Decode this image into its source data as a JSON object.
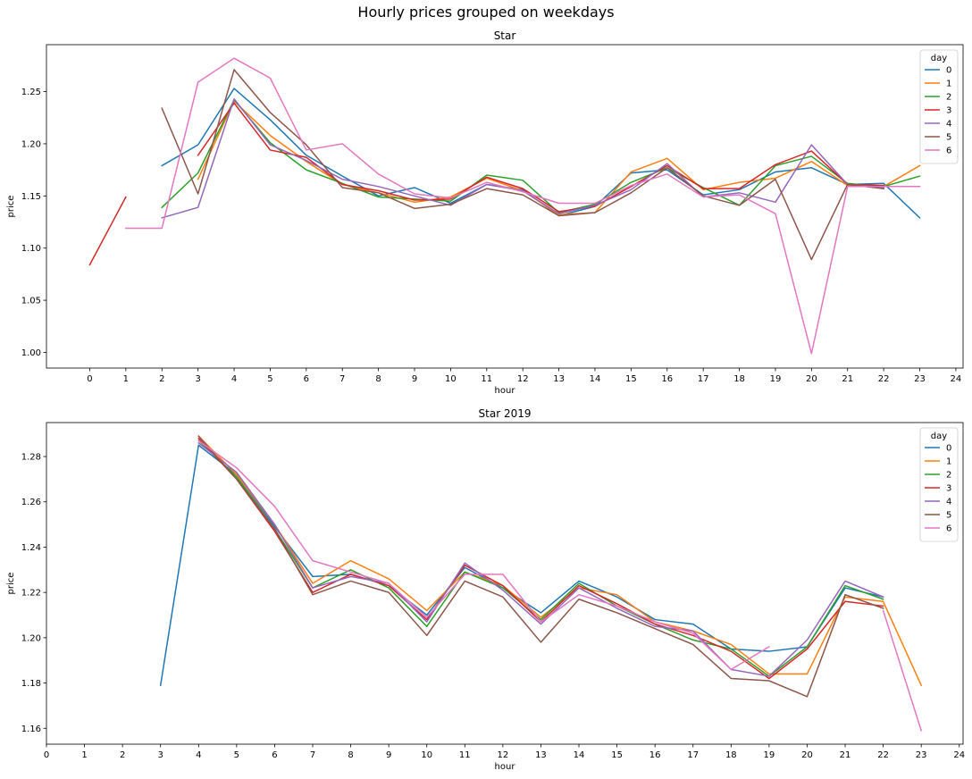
{
  "figure": {
    "suptitle": "Hourly prices grouped on weekdays"
  },
  "colors": [
    "#1f77b4",
    "#ff7f0e",
    "#2ca02c",
    "#d62728",
    "#9467bd",
    "#8c564b",
    "#e377c2"
  ],
  "chart_data": [
    {
      "type": "line",
      "title": "Star",
      "xlabel": "hour",
      "ylabel": "price",
      "xlim": [
        -1.2,
        24.2
      ],
      "ylim": [
        0.985,
        1.295
      ],
      "xticks": [
        0,
        1,
        2,
        3,
        4,
        5,
        6,
        7,
        8,
        9,
        10,
        11,
        12,
        13,
        14,
        15,
        16,
        17,
        18,
        19,
        20,
        21,
        22,
        23,
        24
      ],
      "yticks": [
        1.0,
        1.05,
        1.1,
        1.15,
        1.2,
        1.25
      ],
      "ytick_labels": [
        "1.00",
        "1.05",
        "1.10",
        "1.15",
        "1.20",
        "1.25"
      ],
      "legend": {
        "title": "day",
        "position": "top-right"
      },
      "x": [
        0,
        1,
        2,
        3,
        4,
        5,
        6,
        7,
        8,
        9,
        10,
        11,
        12,
        13,
        14,
        15,
        16,
        17,
        18,
        19,
        20,
        21,
        22,
        23
      ],
      "series": [
        {
          "name": "0",
          "values": [
            null,
            null,
            1.179,
            1.199,
            1.253,
            1.223,
            1.189,
            1.169,
            1.15,
            1.158,
            1.143,
            1.161,
            1.156,
            1.131,
            1.14,
            1.172,
            1.175,
            1.151,
            1.156,
            1.173,
            1.177,
            1.161,
            1.162,
            1.129
          ]
        },
        {
          "name": "1",
          "values": [
            null,
            null,
            null,
            1.166,
            1.241,
            1.208,
            1.183,
            1.161,
            1.153,
            1.144,
            1.149,
            1.167,
            1.155,
            1.132,
            1.134,
            1.173,
            1.186,
            1.156,
            1.163,
            1.167,
            1.183,
            1.16,
            1.159,
            1.179
          ]
        },
        {
          "name": "2",
          "values": [
            null,
            null,
            1.139,
            1.172,
            1.242,
            1.201,
            1.175,
            1.162,
            1.149,
            1.147,
            1.145,
            1.17,
            1.165,
            1.134,
            1.142,
            1.163,
            1.177,
            1.158,
            1.141,
            1.179,
            1.188,
            1.162,
            1.159,
            1.169
          ]
        },
        {
          "name": "3",
          "values": [
            1.084,
            1.149,
            null,
            1.189,
            1.239,
            1.194,
            1.187,
            1.161,
            1.155,
            1.146,
            1.147,
            1.168,
            1.157,
            1.135,
            1.14,
            1.159,
            1.179,
            1.157,
            1.157,
            1.18,
            1.193,
            1.161,
            1.16,
            null
          ]
        },
        {
          "name": "4",
          "values": [
            null,
            null,
            1.129,
            1.139,
            1.243,
            1.199,
            1.184,
            1.166,
            1.159,
            1.15,
            1.141,
            1.161,
            1.155,
            1.133,
            1.141,
            1.156,
            1.181,
            1.149,
            1.153,
            1.144,
            1.199,
            1.161,
            1.158,
            null
          ]
        },
        {
          "name": "5",
          "values": [
            null,
            null,
            1.234,
            1.152,
            1.271,
            1.23,
            1.199,
            1.158,
            1.153,
            1.138,
            1.142,
            1.157,
            1.151,
            1.131,
            1.134,
            1.153,
            1.177,
            1.15,
            1.141,
            1.166,
            1.089,
            1.161,
            1.157,
            null
          ]
        },
        {
          "name": "6",
          "values": [
            null,
            1.119,
            1.119,
            1.259,
            1.282,
            1.263,
            1.194,
            1.2,
            1.171,
            1.152,
            1.148,
            1.163,
            1.154,
            1.143,
            1.143,
            1.16,
            1.171,
            1.149,
            1.151,
            1.133,
            0.999,
            1.159,
            1.159,
            1.159
          ]
        }
      ]
    },
    {
      "type": "line",
      "title": "Star 2019",
      "xlabel": "hour",
      "ylabel": "price",
      "xlim": [
        0,
        24.1
      ],
      "ylim": [
        1.153,
        1.295
      ],
      "xticks": [
        0,
        1,
        2,
        3,
        4,
        5,
        6,
        7,
        8,
        9,
        10,
        11,
        12,
        13,
        14,
        15,
        16,
        17,
        18,
        19,
        20,
        21,
        22,
        23,
        24
      ],
      "yticks": [
        1.16,
        1.18,
        1.2,
        1.22,
        1.24,
        1.26,
        1.28
      ],
      "ytick_labels": [
        "1.16",
        "1.18",
        "1.20",
        "1.22",
        "1.24",
        "1.26",
        "1.28"
      ],
      "legend": {
        "title": "day",
        "position": "top-right"
      },
      "x": [
        0,
        1,
        2,
        3,
        4,
        5,
        6,
        7,
        8,
        9,
        10,
        11,
        12,
        13,
        14,
        15,
        16,
        17,
        18,
        19,
        20,
        21,
        22,
        23
      ],
      "series": [
        {
          "name": "0",
          "values": [
            null,
            null,
            null,
            1.179,
            1.285,
            1.272,
            1.249,
            1.227,
            1.228,
            1.223,
            1.21,
            1.231,
            1.222,
            1.211,
            1.225,
            1.218,
            1.208,
            1.206,
            1.195,
            1.194,
            1.196,
            1.222,
            1.218,
            null
          ]
        },
        {
          "name": "1",
          "values": [
            null,
            null,
            null,
            null,
            1.289,
            1.272,
            1.25,
            1.224,
            1.234,
            1.226,
            1.212,
            1.229,
            1.223,
            1.209,
            1.222,
            1.219,
            1.207,
            1.203,
            1.197,
            1.184,
            1.184,
            1.218,
            1.216,
            1.179
          ]
        },
        {
          "name": "2",
          "values": [
            null,
            null,
            null,
            null,
            1.287,
            1.271,
            1.248,
            1.222,
            1.23,
            1.222,
            1.205,
            1.229,
            1.222,
            1.208,
            1.224,
            1.214,
            1.206,
            1.199,
            1.195,
            1.183,
            1.196,
            1.223,
            1.217,
            null
          ]
        },
        {
          "name": "3",
          "values": [
            null,
            null,
            null,
            null,
            1.288,
            1.27,
            1.247,
            1.22,
            1.228,
            1.223,
            1.208,
            1.232,
            1.223,
            1.207,
            1.223,
            1.215,
            1.206,
            1.201,
            1.194,
            1.182,
            1.195,
            1.216,
            1.214,
            null
          ]
        },
        {
          "name": "4",
          "values": [
            null,
            null,
            null,
            null,
            1.286,
            1.273,
            1.25,
            1.222,
            1.227,
            1.224,
            1.207,
            1.233,
            1.221,
            1.206,
            1.222,
            1.213,
            1.205,
            1.203,
            1.186,
            1.183,
            1.199,
            1.225,
            1.218,
            null
          ]
        },
        {
          "name": "5",
          "values": [
            null,
            null,
            null,
            null,
            1.289,
            1.27,
            1.248,
            1.219,
            1.225,
            1.22,
            1.201,
            1.225,
            1.218,
            1.198,
            1.217,
            1.211,
            1.204,
            1.197,
            1.182,
            1.181,
            1.174,
            1.219,
            1.213,
            null
          ]
        },
        {
          "name": "6",
          "values": [
            null,
            null,
            null,
            null,
            1.287,
            1.275,
            1.258,
            1.234,
            1.229,
            1.224,
            1.209,
            1.228,
            1.228,
            1.207,
            1.219,
            1.214,
            1.207,
            1.202,
            1.186,
            1.196,
            null,
            null,
            1.212,
            1.159
          ]
        }
      ]
    }
  ]
}
